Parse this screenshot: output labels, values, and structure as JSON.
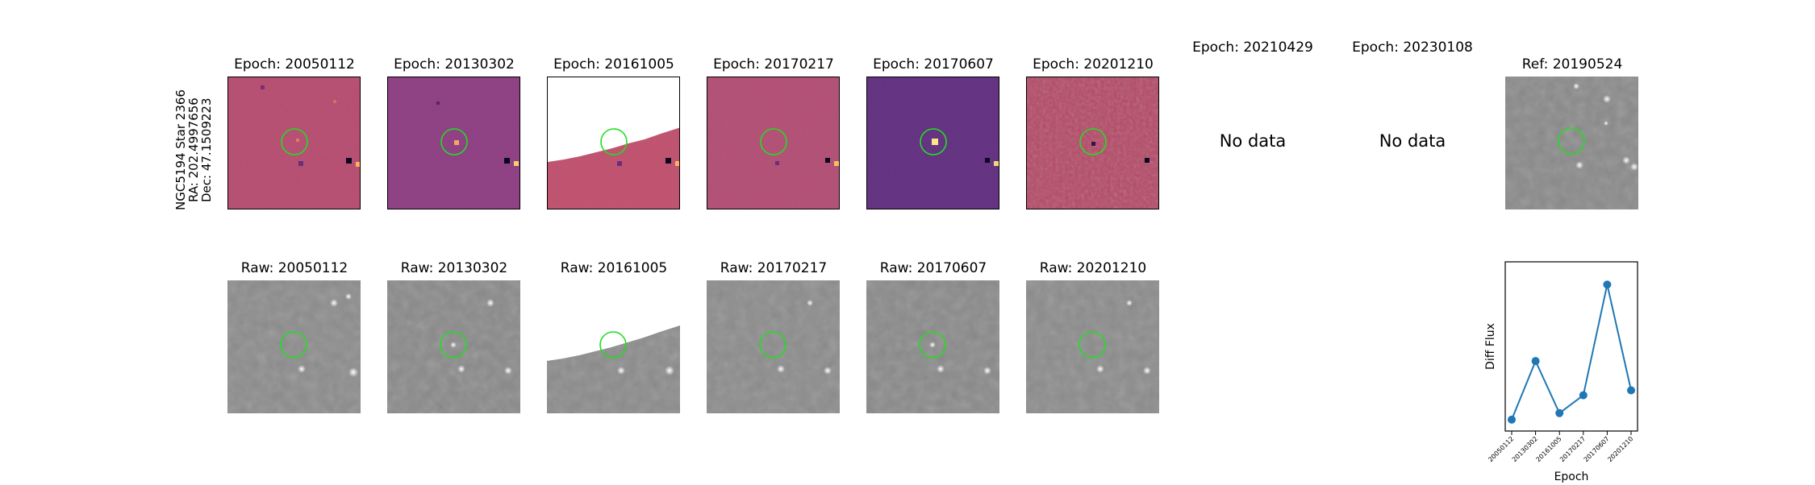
{
  "star_label": {
    "line1": "NGC5194 Star 2366",
    "line2": "RA: 202.4997656",
    "line3": "Dec: 47.1509223"
  },
  "diff_titles": [
    "Epoch: 20050112",
    "Epoch: 20130302",
    "Epoch: 20161005",
    "Epoch: 20170217",
    "Epoch: 20170607",
    "Epoch: 20201210",
    "Epoch: 20210429",
    "Epoch: 20230108"
  ],
  "no_data_text": "No data",
  "ref_title": "Ref: 20190524",
  "raw_titles": [
    "Raw: 20050112",
    "Raw: 20130302",
    "Raw: 20161005",
    "Raw: 20170217",
    "Raw: 20170607",
    "Raw: 20201210"
  ],
  "colors": {
    "circle": "#22dd22",
    "series": "#1f77b4"
  },
  "chart_data": {
    "type": "line",
    "xlabel": "Epoch",
    "ylabel": "Diff Flux",
    "x": [
      "20050112",
      "20130302",
      "20161005",
      "20170217",
      "20170607",
      "20201210"
    ],
    "series": [
      {
        "values": [
          0.02,
          0.38,
          0.06,
          0.17,
          0.85,
          0.2
        ]
      }
    ],
    "ylim": [
      -0.05,
      0.99
    ],
    "yticks_visible": false,
    "grid": false
  }
}
